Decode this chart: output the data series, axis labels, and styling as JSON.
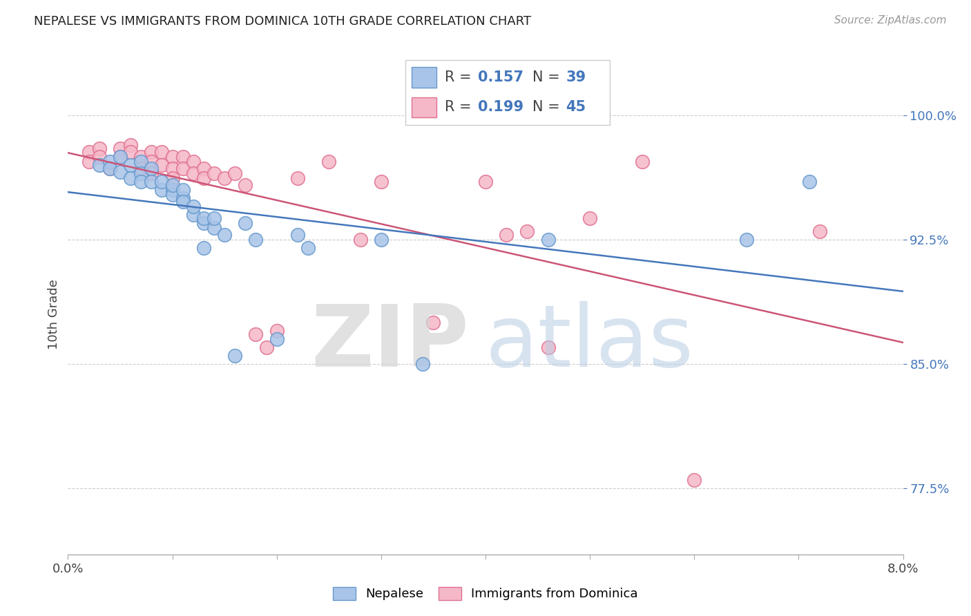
{
  "title": "NEPALESE VS IMMIGRANTS FROM DOMINICA 10TH GRADE CORRELATION CHART",
  "source": "Source: ZipAtlas.com",
  "ylabel": "10th Grade",
  "yticks": [
    0.775,
    0.85,
    0.925,
    1.0
  ],
  "ytick_labels": [
    "77.5%",
    "85.0%",
    "92.5%",
    "100.0%"
  ],
  "xlim": [
    0.0,
    0.08
  ],
  "ylim": [
    0.735,
    1.025
  ],
  "legend_r_blue": "0.157",
  "legend_n_blue": "39",
  "legend_r_pink": "0.199",
  "legend_n_pink": "45",
  "blue_scatter_color": "#a8c4e8",
  "blue_edge_color": "#6699cc",
  "pink_scatter_color": "#f5b8c8",
  "pink_edge_color": "#e07090",
  "blue_line_color": "#4477bb",
  "pink_line_color": "#cc5577",
  "watermark_zip_color": "#d8d8d8",
  "watermark_atlas_color": "#b8cce8",
  "nepalese_x": [
    0.003,
    0.004,
    0.004,
    0.005,
    0.005,
    0.006,
    0.006,
    0.007,
    0.007,
    0.007,
    0.008,
    0.008,
    0.009,
    0.009,
    0.01,
    0.01,
    0.01,
    0.011,
    0.011,
    0.011,
    0.012,
    0.012,
    0.013,
    0.013,
    0.014,
    0.014,
    0.015,
    0.016,
    0.017,
    0.018,
    0.02,
    0.022,
    0.023,
    0.03,
    0.034,
    0.046,
    0.065,
    0.071,
    0.013
  ],
  "nepalese_y": [
    0.97,
    0.972,
    0.968,
    0.975,
    0.966,
    0.97,
    0.962,
    0.972,
    0.965,
    0.96,
    0.968,
    0.96,
    0.955,
    0.96,
    0.955,
    0.952,
    0.958,
    0.95,
    0.955,
    0.948,
    0.94,
    0.945,
    0.935,
    0.938,
    0.932,
    0.938,
    0.928,
    0.855,
    0.935,
    0.925,
    0.865,
    0.928,
    0.92,
    0.925,
    0.85,
    0.925,
    0.925,
    0.96,
    0.92
  ],
  "dominica_x": [
    0.002,
    0.002,
    0.003,
    0.003,
    0.004,
    0.005,
    0.005,
    0.006,
    0.006,
    0.007,
    0.007,
    0.008,
    0.008,
    0.008,
    0.009,
    0.009,
    0.01,
    0.01,
    0.01,
    0.011,
    0.011,
    0.012,
    0.012,
    0.013,
    0.013,
    0.014,
    0.015,
    0.016,
    0.017,
    0.018,
    0.019,
    0.02,
    0.022,
    0.025,
    0.028,
    0.03,
    0.035,
    0.04,
    0.042,
    0.044,
    0.046,
    0.05,
    0.055,
    0.06,
    0.072
  ],
  "dominica_y": [
    0.978,
    0.972,
    0.98,
    0.975,
    0.968,
    0.98,
    0.975,
    0.982,
    0.978,
    0.975,
    0.968,
    0.978,
    0.972,
    0.965,
    0.978,
    0.97,
    0.975,
    0.968,
    0.962,
    0.975,
    0.968,
    0.972,
    0.965,
    0.968,
    0.962,
    0.965,
    0.962,
    0.965,
    0.958,
    0.868,
    0.86,
    0.87,
    0.962,
    0.972,
    0.925,
    0.96,
    0.875,
    0.96,
    0.928,
    0.93,
    0.86,
    0.938,
    0.972,
    0.78,
    0.93
  ]
}
